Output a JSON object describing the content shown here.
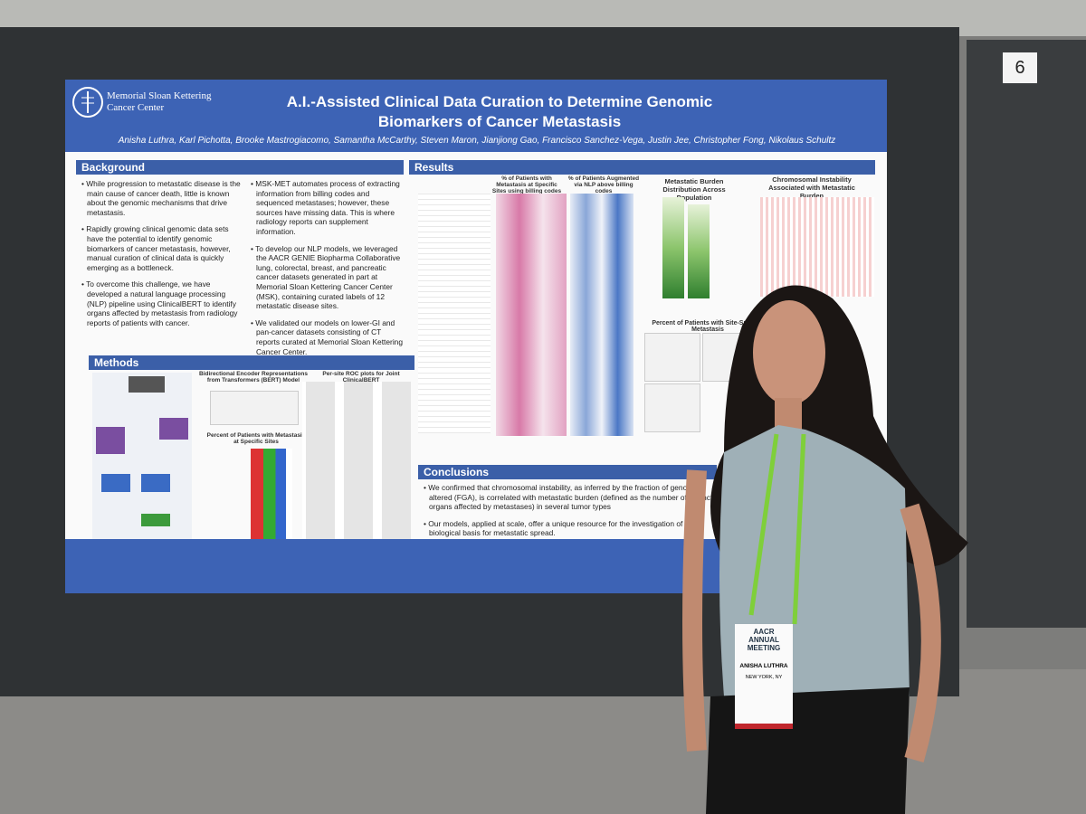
{
  "board_number": "6",
  "poster": {
    "institution": "Memorial Sloan Kettering Cancer Center",
    "title": "A.I.-Assisted Clinical Data Curation to Determine Genomic Biomarkers of Cancer Metastasis",
    "authors": "Anisha Luthra, Karl Pichotta, Brooke Mastrogiacomo, Samantha McCarthy, Steven Maron, Jianjiong Gao, Francisco Sanchez-Vega, Justin Jee, Christopher Fong, Nikolaus Schultz",
    "background": {
      "heading": "Background",
      "paragraphs": [
        "While progression to metastatic disease is the main cause of cancer death, little is known about the genomic mechanisms that drive metastasis.",
        "Rapidly growing clinical genomic data sets have the potential to identify genomic biomarkers of cancer metastasis, however, manual curation of clinical data is quickly emerging as a bottleneck.",
        "To overcome this challenge, we have developed a natural language processing (NLP) pipeline using ClinicalBERT to identify organs affected by metastasis from radiology reports of patients with cancer.",
        "MSK-MET automates process of extracting information from billing codes and sequenced metastases; however, these sources have missing data. This is where radiology reports can supplement information.",
        "To develop our NLP models, we leveraged the AACR GENIE Biopharma Collaborative lung, colorectal, breast, and pancreatic cancer datasets generated in part at Memorial Sloan Kettering Cancer Center (MSK), containing curated labels of 12 metastatic disease sites.",
        "We validated our models on lower-GI and pan-cancer datasets consisting of CT reports curated at Memorial Sloan Kettering Cancer Center."
      ]
    },
    "methods": {
      "heading": "Methods",
      "panels": [
        "Bidirectional Encoder Representations from Transformers (BERT) Model",
        "Per-site ROC plots for Joint ClinicalBERT",
        "Percent of Patients with Metastasis at Specific Sites"
      ]
    },
    "results": {
      "heading": "Results",
      "panels": [
        "% of Patients with Metastasis at Specific Sites using billing codes and NLP Predictions",
        "% of Patients Augmented via NLP above billing codes",
        "Metastatic Burden Distribution Across Population",
        "Chromosomal Instability Associated with Metastatic Burden",
        "Percent of Patients with Site-Specific Metastasis"
      ]
    },
    "conclusions": {
      "heading": "Conclusions",
      "paragraphs": [
        "We confirmed that chromosomal instability, as inferred by the fraction of genome altered (FGA), is correlated with metastatic burden (defined as the number of distinct organs affected by metastases) in several tumor types",
        "Our models, applied at scale, offer a unique resource for the investigation of the biological basis for metastatic spread."
      ]
    }
  },
  "badge": {
    "event": "AACR ANNUAL MEETING",
    "name": "ANISHA LUTHRA",
    "location": "NEW YORK, NY"
  }
}
